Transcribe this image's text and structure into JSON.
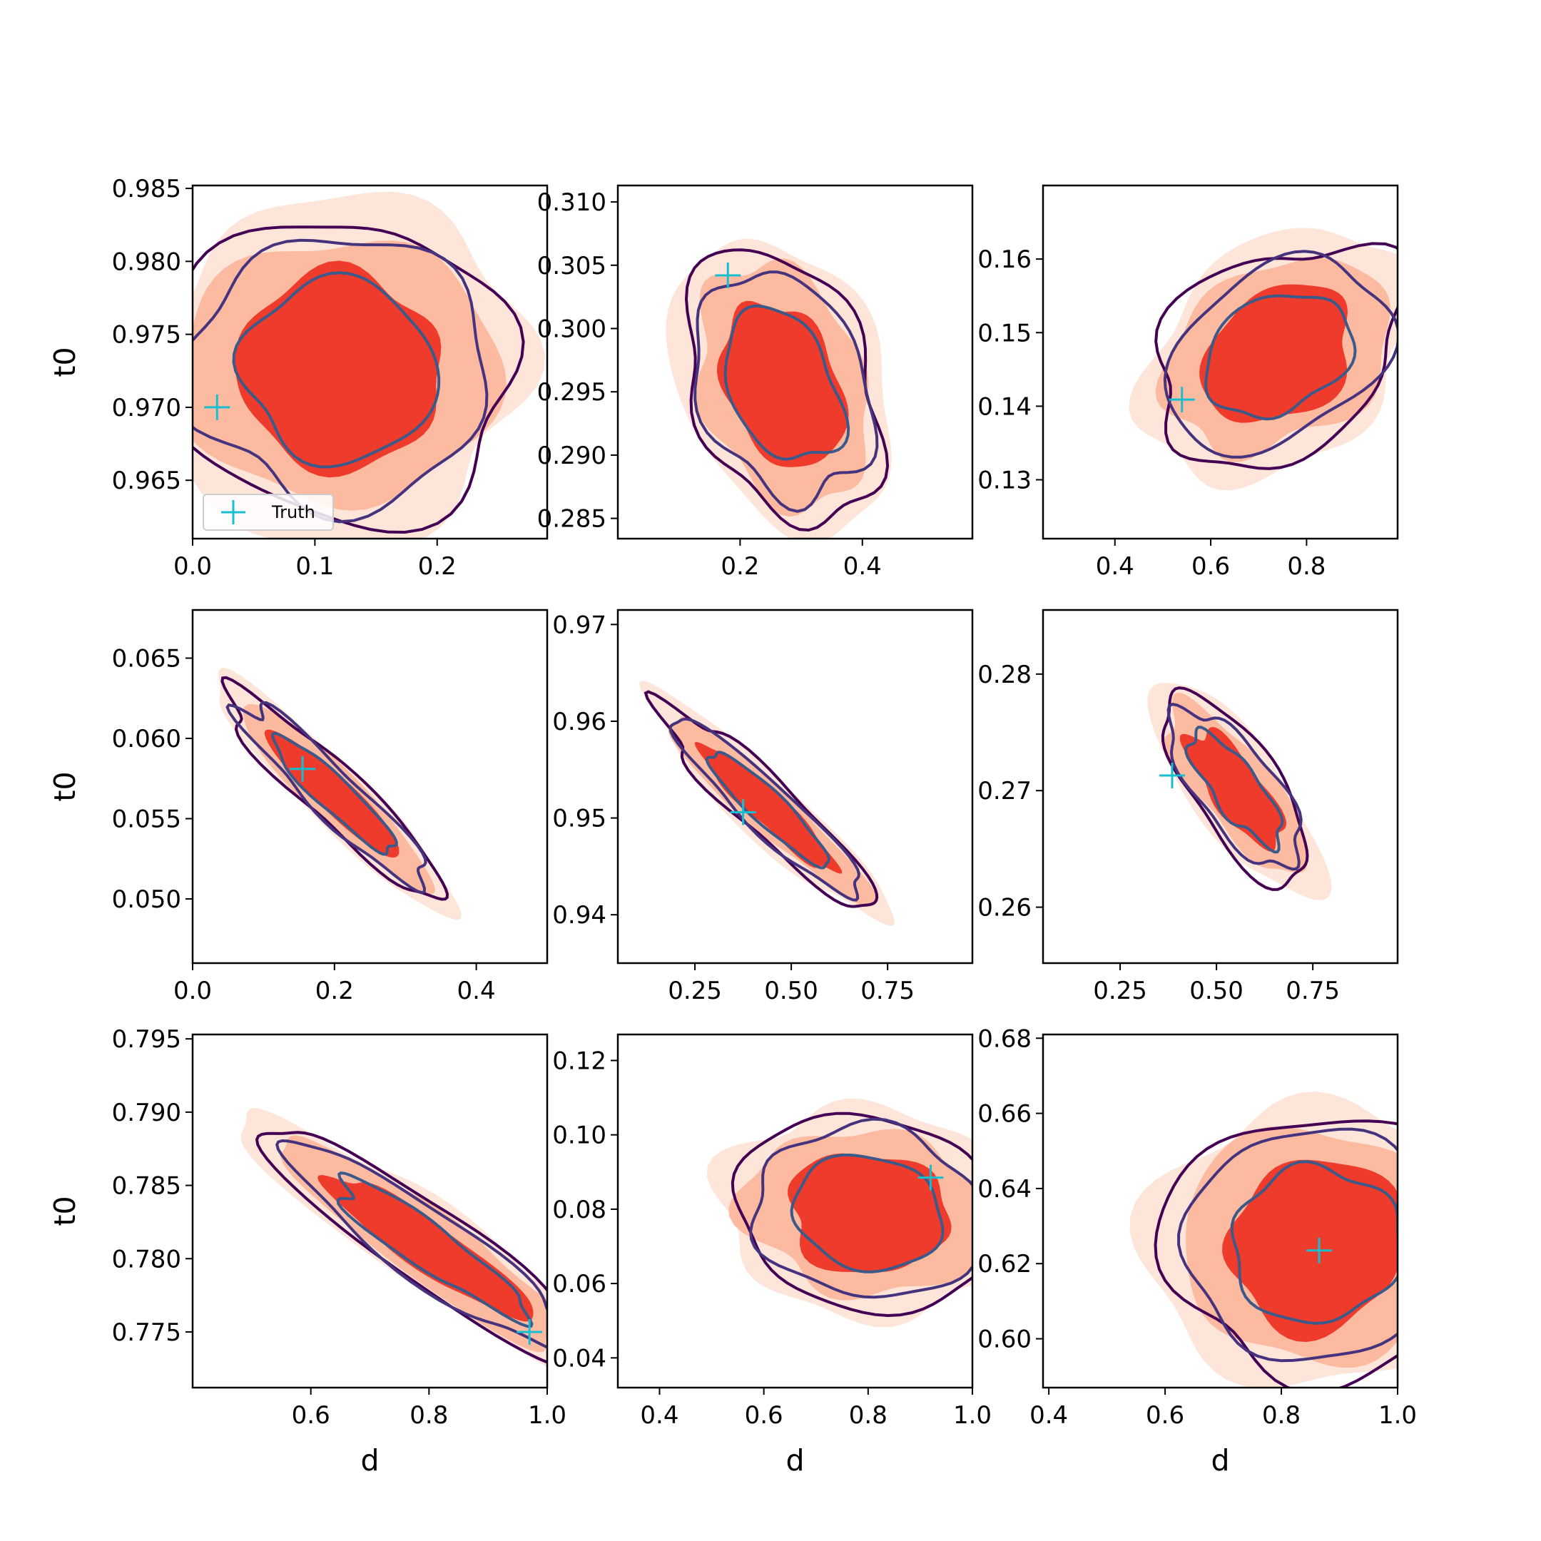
{
  "colors": {
    "fill_levels": [
      "#fee5d9",
      "#fcbba1",
      "#ef3b2c"
    ],
    "line_outer": "#440154",
    "line_mid": "#46337e",
    "line_inner": "#3b5a8a",
    "truth": "#17becf"
  },
  "legend": {
    "label": "Truth"
  },
  "chart_data": [
    {
      "type": "contour",
      "xlabel": "",
      "ylabel": "t0",
      "xlim": [
        0.0,
        0.29
      ],
      "ylim": [
        0.961,
        0.9852
      ],
      "xticks": [
        0.0,
        0.1,
        0.2
      ],
      "xtick_labels": [
        "0.0",
        "0.1",
        "0.2"
      ],
      "yticks": [
        0.965,
        0.97,
        0.975,
        0.98,
        0.985
      ],
      "ytick_labels": [
        "0.965",
        "0.970",
        "0.975",
        "0.980",
        "0.985"
      ],
      "truth": [
        0.02,
        0.97
      ],
      "posterior": {
        "center": [
          0.12,
          0.9725
        ],
        "sx": 0.06,
        "sy": 0.0045,
        "corr": 0.0
      }
    },
    {
      "type": "contour",
      "xlabel": "",
      "ylabel": "",
      "xlim": [
        0.0,
        0.58
      ],
      "ylim": [
        0.2834,
        0.3113
      ],
      "xticks": [
        0.2,
        0.4
      ],
      "xtick_labels": [
        "0.2",
        "0.4"
      ],
      "yticks": [
        0.285,
        0.29,
        0.295,
        0.3,
        0.305,
        0.31
      ],
      "ytick_labels": [
        "0.285",
        "0.290",
        "0.295",
        "0.300",
        "0.305",
        "0.310"
      ],
      "truth": [
        0.18,
        0.3042
      ],
      "posterior": {
        "center": [
          0.27,
          0.2955
        ],
        "sx": 0.07,
        "sy": 0.0045,
        "corr": -0.3
      }
    },
    {
      "type": "contour",
      "xlabel": "",
      "ylabel": "",
      "xlim": [
        0.25,
        0.99
      ],
      "ylim": [
        0.122,
        0.17
      ],
      "xticks": [
        0.4,
        0.6,
        0.8
      ],
      "xtick_labels": [
        "0.4",
        "0.6",
        "0.8"
      ],
      "yticks": [
        0.13,
        0.14,
        0.15,
        0.16
      ],
      "ytick_labels": [
        "0.13",
        "0.14",
        "0.15",
        "0.16"
      ],
      "truth": [
        0.54,
        0.1409
      ],
      "posterior": {
        "center": [
          0.74,
          0.147
        ],
        "sx": 0.11,
        "sy": 0.0065,
        "corr": 0.3
      }
    },
    {
      "type": "contour",
      "xlabel": "",
      "ylabel": "t0",
      "xlim": [
        0.0,
        0.5
      ],
      "ylim": [
        0.046,
        0.068
      ],
      "xticks": [
        0.0,
        0.2,
        0.4
      ],
      "xtick_labels": [
        "0.0",
        "0.2",
        "0.4"
      ],
      "yticks": [
        0.05,
        0.055,
        0.06,
        0.065
      ],
      "ytick_labels": [
        "0.050",
        "0.055",
        "0.060",
        "0.065"
      ],
      "truth": [
        0.155,
        0.0581
      ],
      "posterior": {
        "center": [
          0.2,
          0.0565
        ],
        "sx": 0.065,
        "sy": 0.0028,
        "corr": -0.93
      }
    },
    {
      "type": "contour",
      "xlabel": "",
      "ylabel": "",
      "xlim": [
        0.05,
        0.97
      ],
      "ylim": [
        0.935,
        0.9715
      ],
      "xticks": [
        0.25,
        0.5,
        0.75
      ],
      "xtick_labels": [
        "0.25",
        "0.50",
        "0.75"
      ],
      "yticks": [
        0.94,
        0.95,
        0.96,
        0.97
      ],
      "ytick_labels": [
        "0.94",
        "0.95",
        "0.96",
        "0.97"
      ],
      "truth": [
        0.375,
        0.9506
      ],
      "posterior": {
        "center": [
          0.44,
          0.951
        ],
        "sx": 0.12,
        "sy": 0.0045,
        "corr": -0.93
      }
    },
    {
      "type": "contour",
      "xlabel": "",
      "ylabel": "",
      "xlim": [
        0.05,
        0.97
      ],
      "ylim": [
        0.2552,
        0.2855
      ],
      "xticks": [
        0.25,
        0.5,
        0.75
      ],
      "xtick_labels": [
        "0.25",
        "0.50",
        "0.75"
      ],
      "yticks": [
        0.26,
        0.27,
        0.28
      ],
      "ytick_labels": [
        "0.26",
        "0.27",
        "0.28"
      ],
      "truth": [
        0.385,
        0.2713
      ],
      "posterior": {
        "center": [
          0.55,
          0.2702
        ],
        "sx": 0.085,
        "sy": 0.0035,
        "corr": -0.75
      }
    },
    {
      "type": "contour",
      "xlabel": "d",
      "ylabel": "t0",
      "xlim": [
        0.4,
        1.0
      ],
      "ylim": [
        0.7712,
        0.7953
      ],
      "xticks": [
        0.6,
        0.8,
        1.0
      ],
      "xtick_labels": [
        "0.6",
        "0.8",
        "1.0"
      ],
      "yticks": [
        0.775,
        0.78,
        0.785,
        0.79,
        0.795
      ],
      "ytick_labels": [
        "0.775",
        "0.780",
        "0.785",
        "0.790",
        "0.795"
      ],
      "truth": [
        0.97,
        0.775
      ],
      "posterior": {
        "center": [
          0.8,
          0.7808
        ],
        "sx": 0.12,
        "sy": 0.0035,
        "corr": -0.92
      }
    },
    {
      "type": "contour",
      "xlabel": "d",
      "ylabel": "",
      "xlim": [
        0.32,
        1.0
      ],
      "ylim": [
        0.032,
        0.127
      ],
      "xticks": [
        0.4,
        0.6,
        0.8,
        1.0
      ],
      "xtick_labels": [
        "0.4",
        "0.6",
        "0.8",
        "1.0"
      ],
      "yticks": [
        0.04,
        0.06,
        0.08,
        0.1,
        0.12
      ],
      "ytick_labels": [
        "0.04",
        "0.06",
        "0.08",
        "0.10",
        "0.12"
      ],
      "truth": [
        0.92,
        0.0885
      ],
      "posterior": {
        "center": [
          0.8,
          0.079
        ],
        "sx": 0.11,
        "sy": 0.011,
        "corr": -0.1
      }
    },
    {
      "type": "contour",
      "xlabel": "d",
      "ylabel": "",
      "xlim": [
        0.39,
        1.0
      ],
      "ylim": [
        0.587,
        0.681
      ],
      "xticks": [
        0.4,
        0.6,
        0.8,
        1.0
      ],
      "xtick_labels": [
        "0.4",
        "0.6",
        "0.8",
        "1.0"
      ],
      "yticks": [
        0.6,
        0.62,
        0.64,
        0.66,
        0.68
      ],
      "ytick_labels": [
        "0.60",
        "0.62",
        "0.64",
        "0.66",
        "0.68"
      ],
      "truth": [
        0.865,
        0.6235
      ],
      "posterior": {
        "center": [
          0.86,
          0.625
        ],
        "sx": 0.11,
        "sy": 0.015,
        "corr": 0.0
      }
    }
  ]
}
